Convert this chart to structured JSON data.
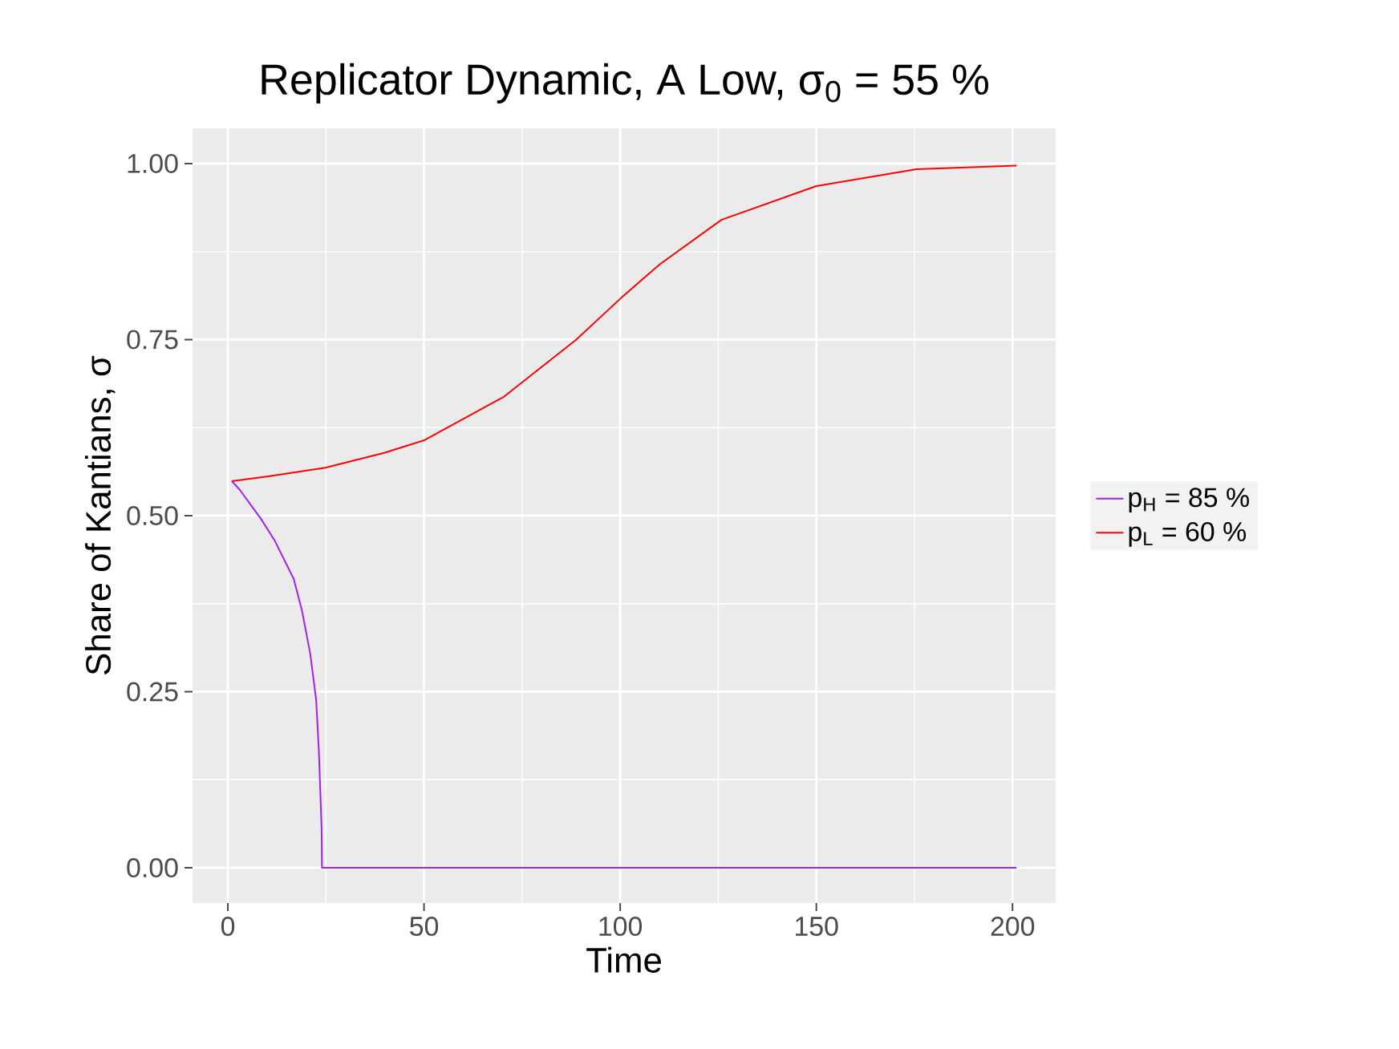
{
  "chart_data": {
    "type": "line",
    "title": "Replicator Dynamic, A Low,  σ$_{0}$ = 55 %",
    "xlabel": "Time",
    "ylabel": "Share of Kantians,  σ",
    "xlim": [
      -9,
      211
    ],
    "ylim": [
      -0.05,
      1.05
    ],
    "xticks": [
      0,
      50,
      100,
      150,
      200
    ],
    "yticks": [
      {
        "value": 0,
        "label": "0.00"
      },
      {
        "value": 0.25,
        "label": "0.25"
      },
      {
        "value": 0.5,
        "label": "0.50"
      },
      {
        "value": 0.75,
        "label": "0.75"
      },
      {
        "value": 1,
        "label": "1.00"
      }
    ],
    "grid": true,
    "legend": "right",
    "series": [
      {
        "name": "p$_{H}$ = 85 %",
        "color": "#a020f0",
        "x": [
          1,
          3,
          8.5,
          12,
          16.8,
          18.9,
          21,
          22.5,
          23.2,
          23.9,
          24,
          50,
          100,
          150,
          201
        ],
        "values": [
          0.549,
          0.537,
          0.495,
          0.464,
          0.41,
          0.365,
          0.304,
          0.239,
          0.166,
          0.055,
          0,
          0,
          0,
          0,
          0
        ]
      },
      {
        "name": "p$_{L}$ = 60 %",
        "color": "#ff0000",
        "x": [
          1,
          10.6,
          24.8,
          39.8,
          50,
          70.4,
          88.8,
          100.2,
          110.1,
          125.8,
          150,
          175.5,
          201
        ],
        "values": [
          0.549,
          0.556,
          0.568,
          0.589,
          0.607,
          0.669,
          0.75,
          0.809,
          0.857,
          0.92,
          0.968,
          0.992,
          0.997
        ]
      }
    ]
  }
}
